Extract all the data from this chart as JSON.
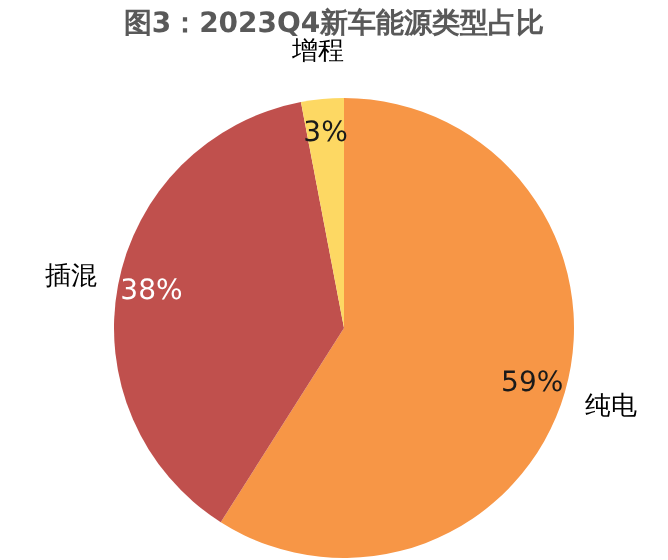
{
  "chart_data": {
    "type": "pie",
    "title": "图3：2023Q4新车能源类型占比",
    "categories": [
      "纯电",
      "插混",
      "增程"
    ],
    "values": [
      59,
      38,
      3
    ],
    "colors": [
      "#f79646",
      "#c0504d",
      "#fdd863"
    ],
    "value_labels": [
      "59%",
      "38%",
      "3%"
    ]
  }
}
